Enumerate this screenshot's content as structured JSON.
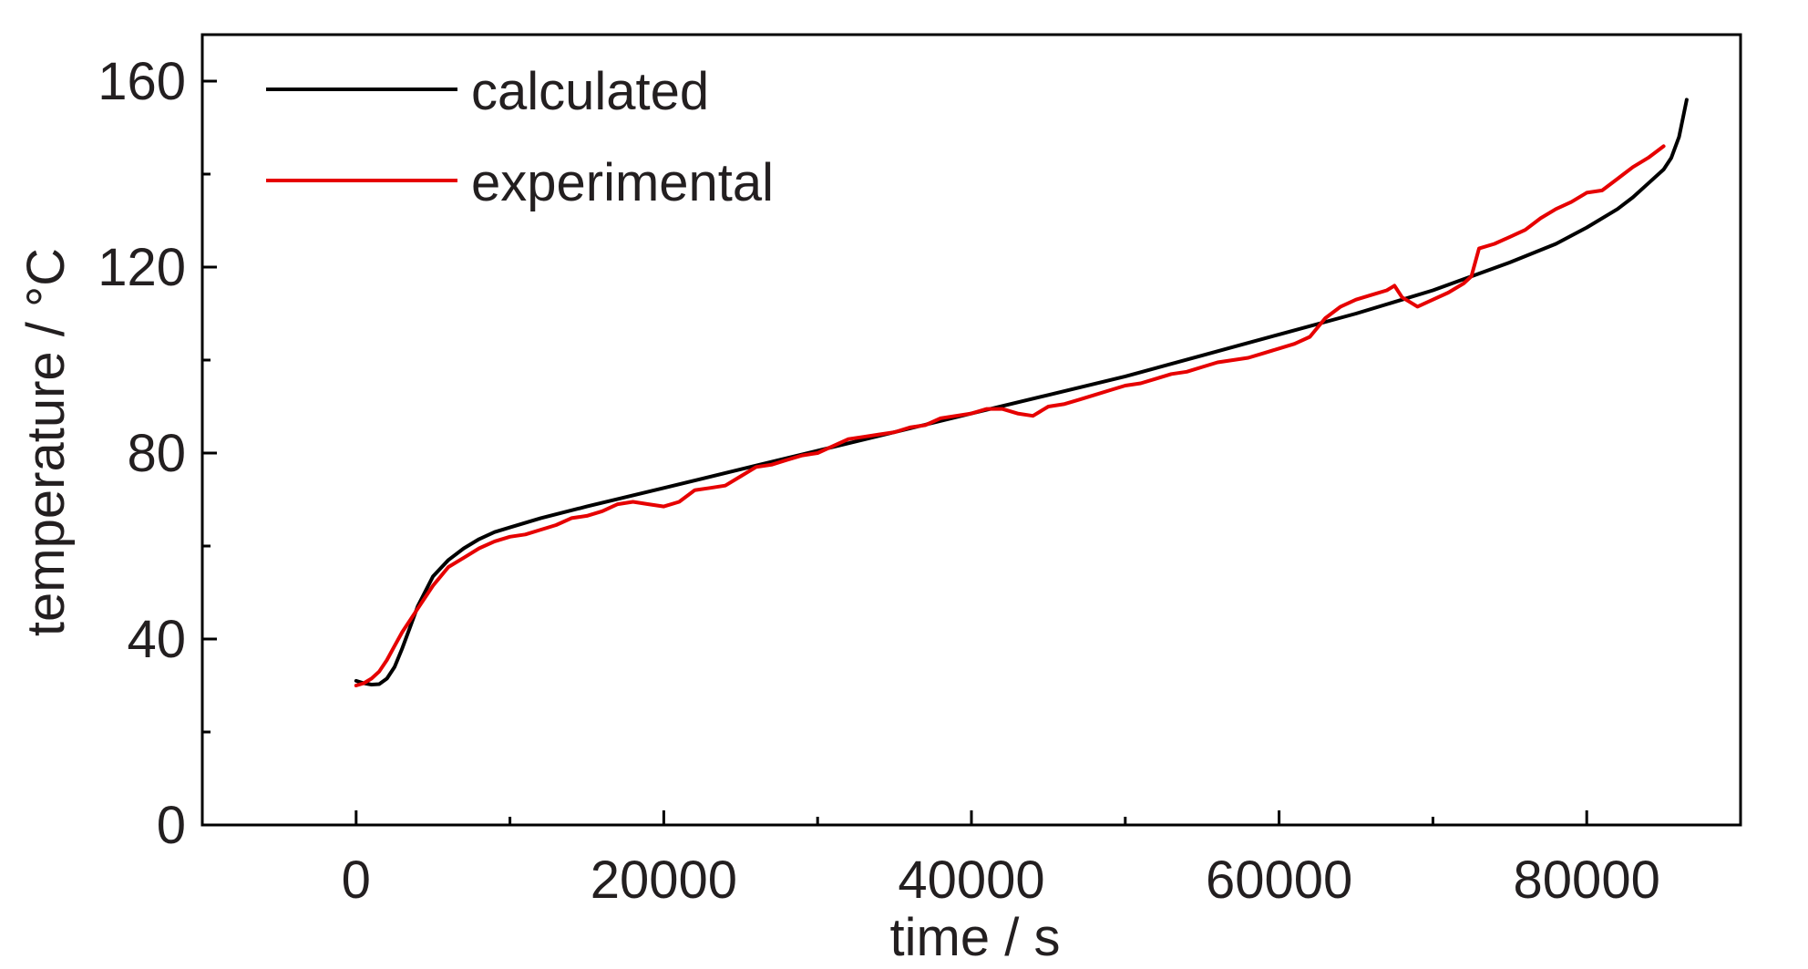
{
  "chart_data": {
    "type": "line",
    "title": "",
    "xlabel": "time / s",
    "ylabel": "temperature / °C",
    "xlim": [
      -10000,
      90000
    ],
    "ylim": [
      0,
      170
    ],
    "x_ticks": [
      0,
      20000,
      40000,
      60000,
      80000
    ],
    "x_tick_labels": [
      "0",
      "20000",
      "40000",
      "60000",
      "80000"
    ],
    "y_ticks": [
      0,
      40,
      80,
      120,
      160
    ],
    "y_tick_labels": [
      "0",
      "40",
      "80",
      "120",
      "160"
    ],
    "grid": false,
    "legend": "top-left",
    "series": [
      {
        "name": "calculated",
        "color": "#000000",
        "x": [
          0,
          500,
          1000,
          1500,
          2000,
          2500,
          3000,
          3500,
          4000,
          5000,
          6000,
          7000,
          8000,
          9000,
          10000,
          12000,
          15000,
          20000,
          25000,
          30000,
          35000,
          40000,
          45000,
          50000,
          55000,
          60000,
          65000,
          70000,
          75000,
          78000,
          80000,
          82000,
          83000,
          84000,
          85000,
          85500,
          86000,
          86500
        ],
        "y": [
          31,
          30.5,
          30.2,
          30.3,
          31.5,
          34,
          38,
          42.5,
          47,
          53.5,
          57,
          59.5,
          61.5,
          63,
          64,
          66,
          68.5,
          72.5,
          76.5,
          80.5,
          84.5,
          88.5,
          92.5,
          96.5,
          101,
          105.5,
          110,
          115,
          121,
          125,
          128.5,
          132.5,
          135,
          138,
          141,
          143.5,
          148,
          156
        ]
      },
      {
        "name": "experimental",
        "color": "#e60000",
        "x": [
          0,
          500,
          1000,
          1500,
          2000,
          2500,
          3000,
          4000,
          5000,
          6000,
          7000,
          8000,
          9000,
          10000,
          11000,
          12000,
          13000,
          14000,
          15000,
          16000,
          17000,
          18000,
          19000,
          20000,
          21000,
          22000,
          23000,
          24000,
          25000,
          26000,
          27000,
          28000,
          29000,
          30000,
          31000,
          32000,
          33000,
          34000,
          35000,
          36000,
          37000,
          38000,
          39000,
          40000,
          41000,
          42000,
          43000,
          44000,
          45000,
          46000,
          47000,
          48000,
          49000,
          50000,
          51000,
          52000,
          53000,
          54000,
          55000,
          56000,
          57000,
          58000,
          59000,
          60000,
          61000,
          62000,
          63000,
          64000,
          65000,
          66000,
          67000,
          67500,
          68000,
          68500,
          69000,
          70000,
          71000,
          72000,
          72500,
          73000,
          74000,
          75000,
          76000,
          77000,
          78000,
          79000,
          80000,
          81000,
          82000,
          83000,
          84000,
          85000
        ],
        "y": [
          30,
          30.5,
          31.5,
          33,
          35.5,
          38.5,
          41.5,
          46.5,
          51.5,
          55.5,
          57.5,
          59.5,
          61,
          62,
          62.5,
          63.5,
          64.5,
          66,
          66.5,
          67.5,
          69,
          69.5,
          69,
          68.5,
          69.5,
          72,
          72.5,
          73,
          75,
          77,
          77.5,
          78.5,
          79.5,
          80,
          81.5,
          83,
          83.5,
          84,
          84.5,
          85.5,
          86,
          87.5,
          88,
          88.5,
          89.5,
          89.5,
          88.5,
          88,
          90,
          90.5,
          91.5,
          92.5,
          93.5,
          94.5,
          95,
          96,
          97,
          97.5,
          98.5,
          99.5,
          100,
          100.5,
          101.5,
          102.5,
          103.5,
          105,
          109,
          111.5,
          113,
          114,
          115,
          116,
          113.5,
          112.5,
          111.5,
          113,
          114.5,
          116.5,
          118,
          124,
          125,
          126.5,
          128,
          130.5,
          132.5,
          134,
          136,
          136.5,
          139,
          141.5,
          143.5,
          146
        ]
      }
    ]
  }
}
